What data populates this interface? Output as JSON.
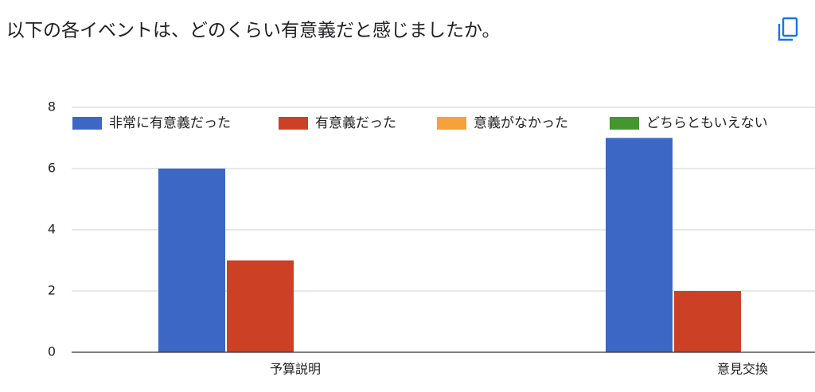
{
  "chart_data": {
    "type": "bar",
    "title": "以下の各イベントは、どのくらい有意義だと感じましたか。",
    "categories": [
      "予算説明",
      "意見交換"
    ],
    "series": [
      {
        "name": "非常に有意義だった",
        "color": "#3d67c5",
        "values": [
          6,
          7
        ]
      },
      {
        "name": "有意義だった",
        "color": "#cc4125",
        "values": [
          3,
          2
        ]
      },
      {
        "name": "意義がなかった",
        "color": "#f6a13a",
        "values": [
          0,
          0
        ]
      },
      {
        "name": "どちらともいえない",
        "color": "#44962f",
        "values": [
          0,
          0
        ]
      }
    ],
    "ylim": [
      0,
      8
    ],
    "yticks": [
      0,
      2,
      4,
      6,
      8
    ],
    "grid": true,
    "legend": "top"
  }
}
